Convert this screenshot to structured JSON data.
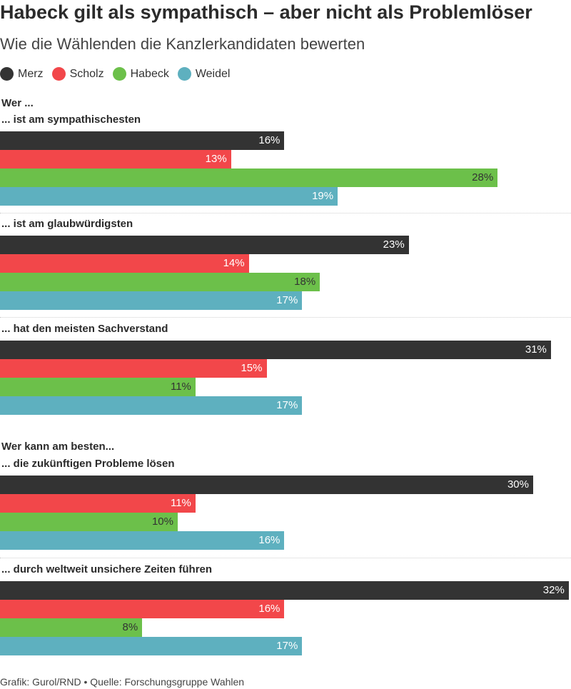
{
  "title": "Habeck gilt als sympathisch – aber nicht als Problemlöser",
  "subtitle": "Wie die Wählenden die Kanzlerkandidaten bewerten",
  "footer": "Grafik: Gurol/RND • Quelle: Forschungsgruppe Wahlen",
  "chart_data": {
    "type": "bar",
    "orientation": "horizontal",
    "title": "Habeck gilt als sympathisch – aber nicht als Problemlöser",
    "subtitle": "Wie die Wählenden die Kanzlerkandidaten bewerten",
    "legend_position": "top-left",
    "unit": "%",
    "xlim": [
      0,
      32
    ],
    "grid": false,
    "series": [
      {
        "name": "Merz",
        "color": "#333333",
        "label_color": "#ffffff"
      },
      {
        "name": "Scholz",
        "color": "#f2474a",
        "label_color": "#ffffff"
      },
      {
        "name": "Habeck",
        "color": "#6cc04a",
        "label_color": "#333333"
      },
      {
        "name": "Weidel",
        "color": "#5eb0bf",
        "label_color": "#ffffff"
      }
    ],
    "sections": [
      {
        "label": "Wer ...",
        "groups": [
          {
            "label": "... ist am sympathischesten",
            "values": [
              16,
              13,
              28,
              19
            ],
            "value_labels": [
              "16%",
              "13%",
              "28%",
              "19%"
            ]
          },
          {
            "label": "... ist am glaubwürdigsten",
            "values": [
              23,
              14,
              18,
              17
            ],
            "value_labels": [
              "23%",
              "14%",
              "18%",
              "17%"
            ]
          },
          {
            "label": "... hat den meisten Sachverstand",
            "values": [
              31,
              15,
              11,
              17
            ],
            "value_labels": [
              "31%",
              "15%",
              "11%",
              "17%"
            ]
          }
        ]
      },
      {
        "label": "Wer kann am besten...",
        "groups": [
          {
            "label": "... die zukünftigen Probleme lösen",
            "values": [
              30,
              11,
              10,
              16
            ],
            "value_labels": [
              "30%",
              "11%",
              "10%",
              "16%"
            ]
          },
          {
            "label": "... durch weltweit unsichere Zeiten führen",
            "values": [
              32,
              16,
              8,
              17
            ],
            "value_labels": [
              "32%",
              "16%",
              "8%",
              "17%"
            ]
          }
        ]
      }
    ]
  }
}
